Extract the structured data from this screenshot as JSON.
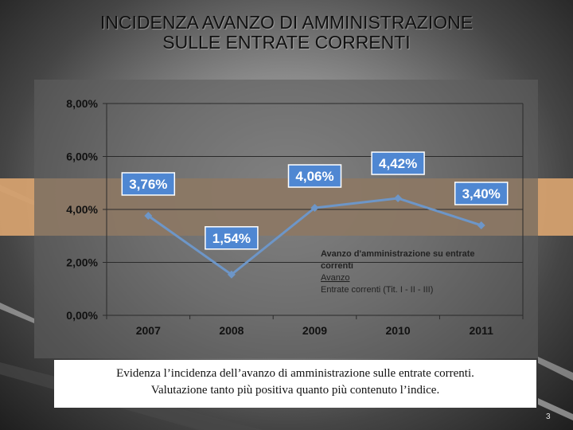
{
  "slide": {
    "title_line1": "INCIDENZA AVANZO DI AMMINISTRAZIONE",
    "title_line2": "SULLE ENTRATE CORRENTI",
    "caption_line1": "Evidenza l’incidenza dell’avanzo di amministrazione sulle entrate correnti.",
    "caption_line2": "Valutazione tanto più positiva quanto più contenuto l’indice.",
    "slide_number": "3"
  },
  "colors": {
    "line": "#6d96c8",
    "label_bg": "#4f87d2",
    "band": "#d7a26f",
    "label_text": "#ffffff"
  },
  "chart_data": {
    "type": "line",
    "categories": [
      "2007",
      "2008",
      "2009",
      "2010",
      "2011"
    ],
    "series": [
      {
        "name": "",
        "values": [
          3.76,
          1.54,
          4.06,
          4.42,
          3.4
        ]
      }
    ],
    "data_labels": [
      "3,76%",
      "1,54%",
      "4,06%",
      "4,42%",
      "3,40%"
    ],
    "y_ticks": [
      0,
      2,
      4,
      6,
      8
    ],
    "y_tick_labels": [
      "0,00%",
      "2,00%",
      "4,00%",
      "6,00%",
      "8,00%"
    ],
    "ylim": [
      0,
      8
    ],
    "grid": true,
    "legend_lines": [
      "Avanzo d'amministrazione su entrate",
      "correnti",
      "Avanzo",
      "Entrate correnti (Tit. I - II - III)"
    ],
    "legend_placement": "bottom-right",
    "title": "",
    "xlabel": "",
    "ylabel": ""
  }
}
